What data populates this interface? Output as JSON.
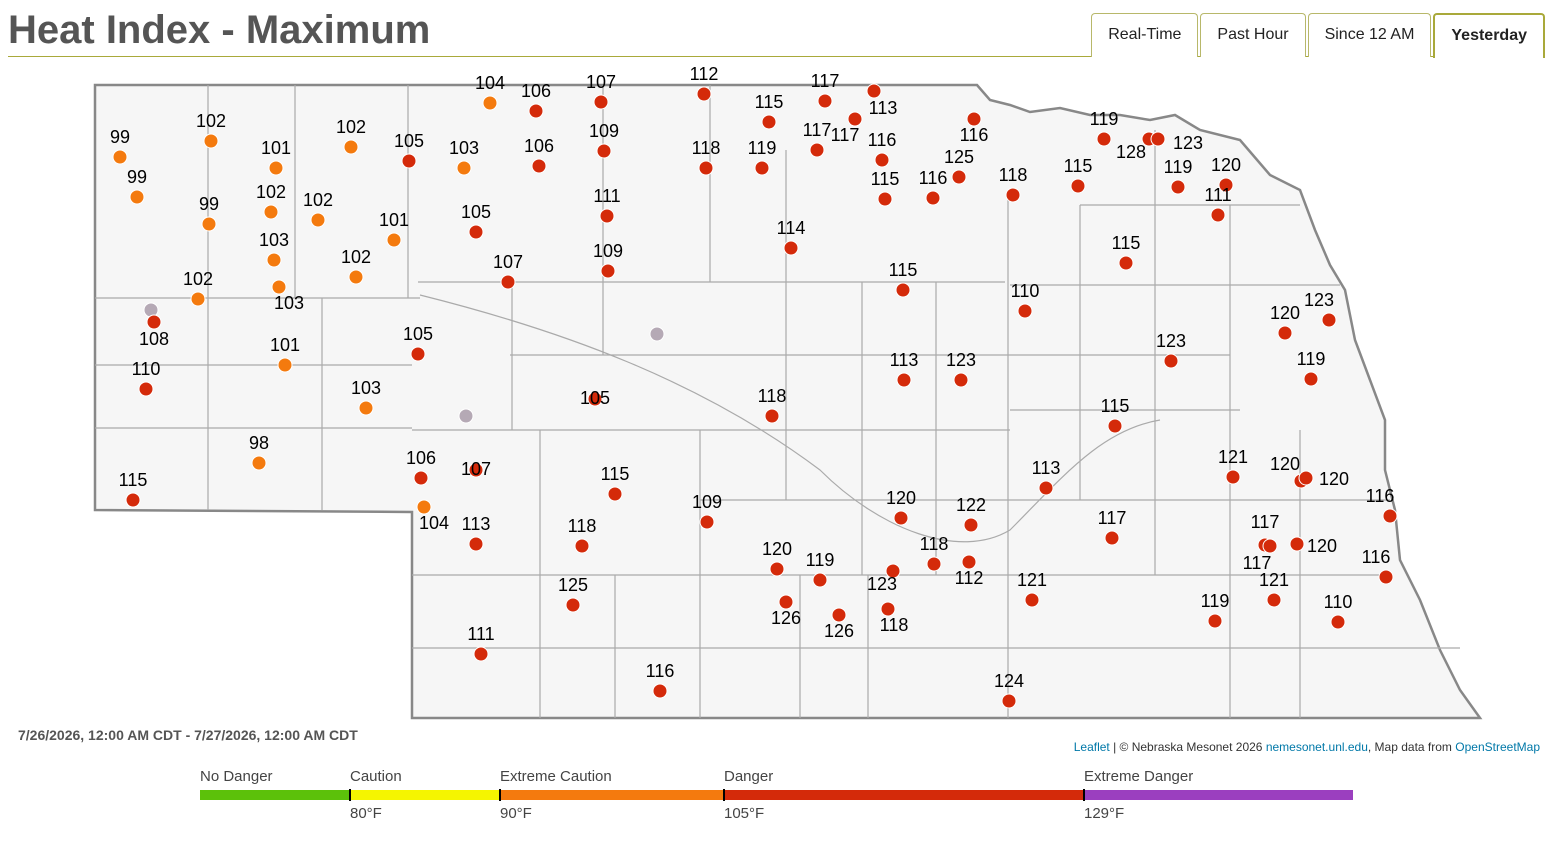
{
  "header": {
    "title": "Heat Index - Maximum",
    "tabs": [
      "Real-Time",
      "Past Hour",
      "Since 12 AM",
      "Yesterday"
    ],
    "active_tab": "Yesterday"
  },
  "period": "7/26/2026, 12:00 AM CDT - 7/27/2026, 12:00 AM CDT",
  "attribution": {
    "leaflet": "Leaflet",
    "text": "| © Nebraska Mesonet 2026",
    "site": "nemesonet.unl.edu",
    "osm_prefix": ", Map data from",
    "osm": "OpenStreetMap"
  },
  "stations": [
    99,
    99,
    102,
    101,
    99,
    102,
    102,
    103,
    103,
    102,
    null,
    108,
    102,
    105,
    103,
    104,
    106,
    107,
    106,
    109,
    105,
    101,
    102,
    107,
    111,
    109,
    112,
    115,
    117,
    117,
    117,
    113,
    118,
    119,
    116,
    115,
    116,
    125,
    116,
    118,
    115,
    119,
    128,
    123,
    119,
    120,
    111,
    114,
    115,
    115,
    110,
    null,
    105,
    105,
    103,
    101,
    110,
    null,
    107,
    106,
    104,
    98,
    115,
    113,
    123,
    118,
    123,
    120,
    123,
    119,
    115,
    115,
    109,
    113,
    118,
    113,
    121,
    120,
    120,
    116,
    120,
    122,
    117,
    117,
    117,
    120,
    120,
    119,
    123,
    118,
    112,
    125,
    126,
    126,
    118,
    121,
    116,
    121,
    119,
    110,
    111,
    116,
    124
  ],
  "legend": {
    "categories": [
      {
        "name": "No Danger",
        "color": "#5cc10a"
      },
      {
        "name": "Caution",
        "color": "#f5f500",
        "threshold": {
          "value": 80,
          "label": "80°F"
        }
      },
      {
        "name": "Extreme Caution",
        "color": "#f47a0e",
        "threshold": {
          "value": 90,
          "label": "90°F"
        }
      },
      {
        "name": "Danger",
        "color": "#d42a0a",
        "threshold": {
          "value": 105,
          "label": "105°F"
        }
      },
      {
        "name": "Extreme Danger",
        "color": "#9b3fbf",
        "threshold": {
          "value": 129,
          "label": "129°F"
        }
      }
    ],
    "missing_color": "#b5a9b5"
  }
}
